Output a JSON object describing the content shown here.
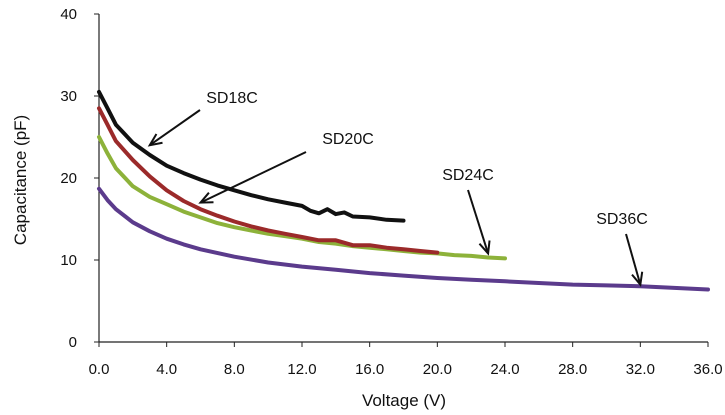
{
  "chart_data": {
    "type": "line",
    "xlabel": "Voltage (V)",
    "ylabel": "Capacitance (pF)",
    "xlim": [
      0,
      36
    ],
    "ylim": [
      0,
      40
    ],
    "x_ticks": [
      "0.0",
      "4.0",
      "8.0",
      "12.0",
      "16.0",
      "20.0",
      "24.0",
      "28.0",
      "32.0",
      "36.0"
    ],
    "y_ticks": [
      "0",
      "10",
      "20",
      "30",
      "40"
    ],
    "grid": false,
    "series": [
      {
        "name": "SD18C",
        "color": "#111111",
        "x": [
          0,
          0.5,
          1,
          2,
          3,
          4,
          5,
          6,
          7,
          8,
          9,
          10,
          11,
          12,
          12.5,
          13,
          13.5,
          14,
          14.5,
          15,
          16,
          17,
          18
        ],
        "y": [
          30.5,
          28.5,
          26.5,
          24.3,
          22.8,
          21.5,
          20.6,
          19.8,
          19.1,
          18.5,
          17.9,
          17.4,
          17.0,
          16.6,
          16.0,
          15.7,
          16.2,
          15.6,
          15.8,
          15.3,
          15.2,
          14.9,
          14.8
        ]
      },
      {
        "name": "SD20C",
        "color": "#9b2a2a",
        "x": [
          0,
          0.5,
          1,
          2,
          3,
          4,
          5,
          6,
          7,
          8,
          9,
          10,
          11,
          12,
          13,
          14,
          15,
          16,
          17,
          18,
          19,
          20
        ],
        "y": [
          28.5,
          26.5,
          24.5,
          22.2,
          20.2,
          18.5,
          17.2,
          16.2,
          15.4,
          14.7,
          14.1,
          13.6,
          13.2,
          12.8,
          12.4,
          12.4,
          11.8,
          11.8,
          11.5,
          11.3,
          11.1,
          10.9
        ]
      },
      {
        "name": "SD24C",
        "color": "#8db23a",
        "x": [
          0,
          0.5,
          1,
          2,
          3,
          4,
          5,
          6,
          7,
          8,
          9,
          10,
          11,
          12,
          13,
          14,
          15,
          16,
          17,
          18,
          19,
          20,
          21,
          22,
          23,
          24
        ],
        "y": [
          25.0,
          23.0,
          21.2,
          19.0,
          17.7,
          16.8,
          15.9,
          15.2,
          14.5,
          14.0,
          13.6,
          13.2,
          12.9,
          12.6,
          12.2,
          12.0,
          11.7,
          11.5,
          11.3,
          11.1,
          10.9,
          10.8,
          10.6,
          10.5,
          10.3,
          10.2
        ]
      },
      {
        "name": "SD36C",
        "color": "#5b3b8c",
        "x": [
          0,
          0.5,
          1,
          2,
          3,
          4,
          5,
          6,
          8,
          10,
          12,
          14,
          16,
          18,
          20,
          22,
          24,
          26,
          28,
          30,
          32,
          34,
          36
        ],
        "y": [
          18.7,
          17.3,
          16.2,
          14.6,
          13.5,
          12.6,
          11.9,
          11.3,
          10.4,
          9.7,
          9.2,
          8.8,
          8.4,
          8.1,
          7.8,
          7.6,
          7.4,
          7.2,
          7.0,
          6.9,
          6.8,
          6.6,
          6.4
        ]
      }
    ],
    "annotations": [
      {
        "text": "SD18C",
        "point": [
          3.0,
          24.0
        ]
      },
      {
        "text": "SD20C",
        "point": [
          6.0,
          17.0
        ]
      },
      {
        "text": "SD24C",
        "point": [
          23.0,
          10.8
        ]
      },
      {
        "text": "SD36C",
        "point": [
          32.0,
          7.0
        ]
      }
    ]
  }
}
